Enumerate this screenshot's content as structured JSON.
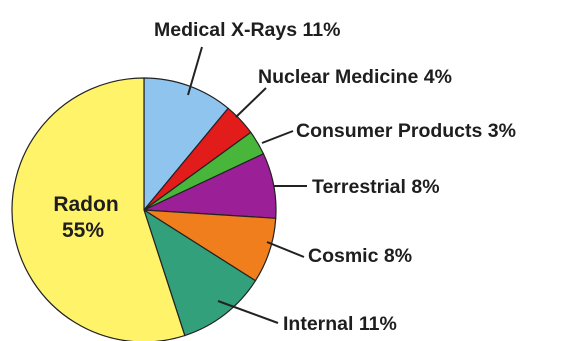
{
  "chart_data": {
    "type": "pie",
    "title": "",
    "slices": [
      {
        "label": "Medical X-Rays",
        "value": 11,
        "display": "Medical X-Rays 11%",
        "color": "#8fc4ee"
      },
      {
        "label": "Nuclear Medicine",
        "value": 4,
        "display": "Nuclear Medicine 4%",
        "color": "#e21b1b"
      },
      {
        "label": "Consumer Products",
        "value": 3,
        "display": "Consumer Products 3%",
        "color": "#47b63a"
      },
      {
        "label": "Terrestrial",
        "value": 8,
        "display": "Terrestrial 8%",
        "color": "#9b1f96"
      },
      {
        "label": "Cosmic",
        "value": 8,
        "display": "Cosmic 8%",
        "color": "#f07e1d"
      },
      {
        "label": "Internal",
        "value": 11,
        "display": "Internal 11%",
        "color": "#33a07c"
      },
      {
        "label": "Radon",
        "value": 55,
        "display_line1": "Radon",
        "display_line2": "55%",
        "color": "#fff36a"
      }
    ]
  }
}
